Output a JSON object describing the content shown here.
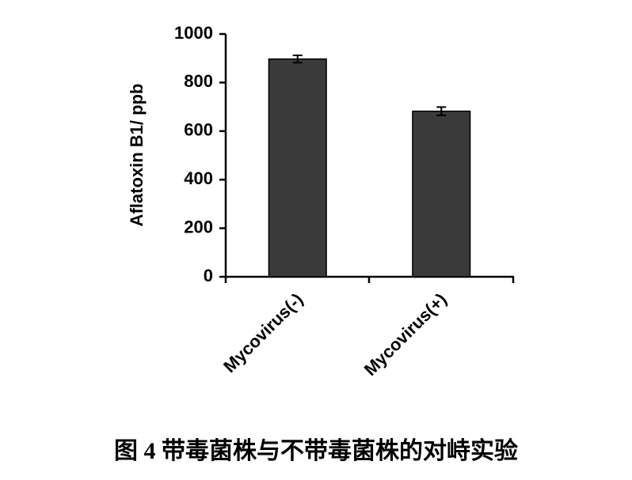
{
  "chart_data": {
    "type": "bar",
    "title": "图 4    带毒菌株与不带毒菌株的对峙实验",
    "y_label": "Aflatoxin B1/ ppb",
    "categories": [
      "Mycovirus(-)",
      "Mycovirus(+)"
    ],
    "values": [
      897,
      682
    ],
    "errors": [
      15,
      17
    ],
    "color": "#3a3a3a",
    "ylim": [
      0,
      1000
    ],
    "yticks": [
      0,
      200,
      400,
      600,
      800,
      1000
    ]
  }
}
